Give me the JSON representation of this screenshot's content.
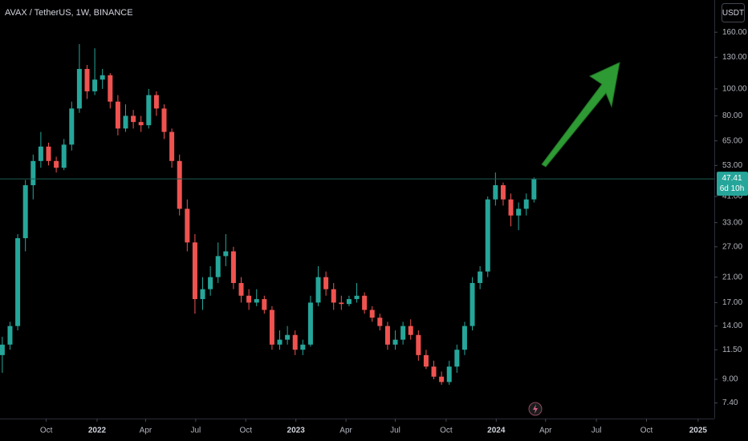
{
  "chart_data": {
    "type": "candlestick",
    "title": "AVAX / TetherUS, 1W, BINANCE",
    "currency_button": "USDT",
    "countdown": "6d 10h",
    "log_scale": true,
    "up_color": "#26a69a",
    "down_color": "#ef5350",
    "ylim": [
      6.5,
      209
    ],
    "yticks": [
      {
        "value": 160,
        "label": "160.00"
      },
      {
        "value": 130,
        "label": "130.00"
      },
      {
        "value": 100,
        "label": "100.00"
      },
      {
        "value": 80,
        "label": "80.00"
      },
      {
        "value": 65,
        "label": "65.00"
      },
      {
        "value": 53,
        "label": "53.00"
      },
      {
        "value": 41,
        "label": "41.00"
      },
      {
        "value": 33,
        "label": "33.00"
      },
      {
        "value": 27,
        "label": "27.00"
      },
      {
        "value": 21,
        "label": "21.00"
      },
      {
        "value": 17,
        "label": "17.00"
      },
      {
        "value": 14,
        "label": "14.00"
      },
      {
        "value": 11.5,
        "label": "11.50"
      },
      {
        "value": 9,
        "label": "9.00"
      },
      {
        "value": 7.4,
        "label": "7.40"
      }
    ],
    "xlim": [
      -0.3,
      92.4
    ],
    "xticks": [
      {
        "value": 5.7,
        "label": "Oct"
      },
      {
        "value": 12.3,
        "label": "2022"
      },
      {
        "value": 18.6,
        "label": "Apr"
      },
      {
        "value": 25.1,
        "label": "Jul"
      },
      {
        "value": 31.6,
        "label": "Oct"
      },
      {
        "value": 38.1,
        "label": "2023"
      },
      {
        "value": 44.6,
        "label": "Apr"
      },
      {
        "value": 51.0,
        "label": "Jul"
      },
      {
        "value": 57.6,
        "label": "Oct"
      },
      {
        "value": 64.1,
        "label": "2024"
      },
      {
        "value": 70.5,
        "label": "Apr"
      },
      {
        "value": 77.1,
        "label": "Jul"
      },
      {
        "value": 83.6,
        "label": "Oct"
      },
      {
        "value": 90.3,
        "label": "2025"
      }
    ],
    "ohlc": [
      [
        11,
        12.8,
        9.5,
        12
      ],
      [
        12,
        14.5,
        11.5,
        14
      ],
      [
        14,
        30,
        13.5,
        29
      ],
      [
        29,
        47,
        26,
        45
      ],
      [
        45,
        58,
        40,
        55
      ],
      [
        55,
        70,
        52,
        62
      ],
      [
        62,
        64,
        53,
        55
      ],
      [
        55,
        57,
        50,
        52
      ],
      [
        52,
        66,
        51,
        63
      ],
      [
        63,
        90,
        60,
        85
      ],
      [
        85,
        145,
        82,
        118
      ],
      [
        118,
        122,
        92,
        98
      ],
      [
        98,
        140,
        95,
        108
      ],
      [
        108,
        118,
        100,
        112
      ],
      [
        112,
        114,
        85,
        90
      ],
      [
        90,
        95,
        68,
        72
      ],
      [
        72,
        88,
        70,
        80
      ],
      [
        80,
        84,
        72,
        76
      ],
      [
        76,
        80,
        70,
        74
      ],
      [
        74,
        100,
        72,
        95
      ],
      [
        95,
        98,
        80,
        85
      ],
      [
        85,
        88,
        66,
        70
      ],
      [
        70,
        72,
        52,
        55
      ],
      [
        55,
        58,
        35,
        37
      ],
      [
        37,
        40,
        26,
        28
      ],
      [
        28,
        30,
        15.5,
        17.5
      ],
      [
        17.5,
        21,
        16,
        19
      ],
      [
        19,
        23,
        18,
        21
      ],
      [
        21,
        28,
        20,
        25
      ],
      [
        25,
        30,
        23,
        26
      ],
      [
        26,
        27,
        19,
        20
      ],
      [
        20,
        21,
        17,
        18
      ],
      [
        18,
        19,
        16,
        17
      ],
      [
        17,
        19,
        16.5,
        17.5
      ],
      [
        17.5,
        18,
        15.5,
        16
      ],
      [
        16,
        16.5,
        11.5,
        12
      ],
      [
        12,
        13.5,
        11.5,
        12.5
      ],
      [
        12.5,
        14,
        12,
        13
      ],
      [
        13,
        13.5,
        11,
        11.5
      ],
      [
        11.5,
        12.5,
        11,
        12
      ],
      [
        12,
        18,
        11.8,
        17
      ],
      [
        17,
        23,
        16.5,
        21
      ],
      [
        21,
        22,
        18,
        19
      ],
      [
        19,
        20,
        16,
        17
      ],
      [
        17,
        18,
        16,
        16.8
      ],
      [
        16.8,
        18,
        16.5,
        17.5
      ],
      [
        17.5,
        20,
        17,
        18
      ],
      [
        18,
        18.5,
        15.5,
        16
      ],
      [
        16,
        16.5,
        14.5,
        15
      ],
      [
        15,
        15.5,
        13.5,
        14
      ],
      [
        14,
        14.5,
        11.5,
        12
      ],
      [
        12,
        13.5,
        11.5,
        12.5
      ],
      [
        12.5,
        14.5,
        12,
        14
      ],
      [
        14,
        14.8,
        12.5,
        13
      ],
      [
        13,
        13.5,
        10.5,
        11
      ],
      [
        11,
        11.5,
        9.8,
        10
      ],
      [
        10,
        10.5,
        9,
        9.2
      ],
      [
        9.2,
        9.6,
        8.6,
        8.8
      ],
      [
        8.8,
        10.5,
        8.6,
        10
      ],
      [
        10,
        12,
        9.5,
        11.5
      ],
      [
        11.5,
        14.5,
        11,
        14
      ],
      [
        14,
        21,
        13.5,
        20
      ],
      [
        20,
        23,
        19,
        22
      ],
      [
        22,
        41,
        21,
        40
      ],
      [
        40,
        50,
        38,
        45
      ],
      [
        45,
        46,
        38,
        40
      ],
      [
        40,
        42,
        32,
        35
      ],
      [
        35,
        39,
        31,
        37
      ],
      [
        37,
        42,
        35,
        40
      ],
      [
        40,
        48,
        39,
        47.41
      ]
    ]
  }
}
